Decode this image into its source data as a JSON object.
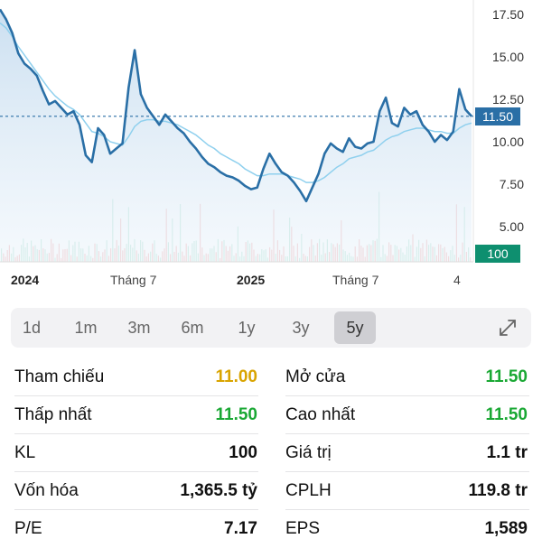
{
  "chart_data": {
    "type": "line",
    "y_ticks": [
      "17.50",
      "15.00",
      "12.50",
      "10.00",
      "7.50",
      "5.00"
    ],
    "y_tick_values": [
      17.5,
      15.0,
      12.5,
      10.0,
      7.5,
      5.0
    ],
    "x_ticks": [
      {
        "label": "2024",
        "bold": true
      },
      {
        "label": "Tháng 7",
        "bold": false
      },
      {
        "label": "2025",
        "bold": true
      },
      {
        "label": "Tháng 7",
        "bold": false
      },
      {
        "label": "4",
        "bold": false
      }
    ],
    "current_price": "11.50",
    "current_price_value": 11.5,
    "current_volume": "100",
    "price_series": [
      17.8,
      17.2,
      16.4,
      15.2,
      14.6,
      14.3,
      13.9,
      13.0,
      12.2,
      12.4,
      12.0,
      11.6,
      11.8,
      11.0,
      9.2,
      8.8,
      10.8,
      10.4,
      9.3,
      9.6,
      9.9,
      13.2,
      15.4,
      12.8,
      12.0,
      11.5,
      11.0,
      11.6,
      11.2,
      10.8,
      10.5,
      10.0,
      9.6,
      9.1,
      8.7,
      8.5,
      8.2,
      8.0,
      7.9,
      7.7,
      7.4,
      7.2,
      7.3,
      8.4,
      9.3,
      8.7,
      8.2,
      8.0,
      7.6,
      7.1,
      6.5,
      7.3,
      8.1,
      9.3,
      9.9,
      9.6,
      9.4,
      10.2,
      9.7,
      9.6,
      9.9,
      10.0,
      11.8,
      12.6,
      11.1,
      10.9,
      12.0,
      11.6,
      11.8,
      11.0,
      10.6,
      10.0,
      10.4,
      10.1,
      10.6,
      13.1,
      11.9,
      11.5
    ],
    "ma_series": [
      17.0,
      16.7,
      16.2,
      15.6,
      15.1,
      14.6,
      14.1,
      13.6,
      13.1,
      12.7,
      12.4,
      12.1,
      11.9,
      11.6,
      11.1,
      10.6,
      10.5,
      10.3,
      10.0,
      9.9,
      9.8,
      10.3,
      10.9,
      11.2,
      11.3,
      11.3,
      11.2,
      11.2,
      11.1,
      11.0,
      10.8,
      10.6,
      10.4,
      10.1,
      9.8,
      9.6,
      9.3,
      9.1,
      8.9,
      8.7,
      8.4,
      8.2,
      8.0,
      8.0,
      8.1,
      8.1,
      8.1,
      8.0,
      7.9,
      7.8,
      7.6,
      7.6,
      7.7,
      7.9,
      8.2,
      8.5,
      8.7,
      9.0,
      9.1,
      9.2,
      9.4,
      9.5,
      9.8,
      10.1,
      10.3,
      10.4,
      10.6,
      10.7,
      10.8,
      10.8,
      10.7,
      10.6,
      10.6,
      10.5,
      10.5,
      10.8,
      11.0,
      11.1
    ]
  },
  "ranges": {
    "items": [
      "1d",
      "1m",
      "3m",
      "6m",
      "1y",
      "3y",
      "5y"
    ],
    "active": "5y"
  },
  "stats": [
    {
      "left_label": "Tham chiếu",
      "left_value": "11.00",
      "left_color": "#d9a400",
      "right_label": "Mở cửa",
      "right_value": "11.50",
      "right_color": "#1aa834"
    },
    {
      "left_label": "Thấp nhất",
      "left_value": "11.50",
      "left_color": "#1aa834",
      "right_label": "Cao nhất",
      "right_value": "11.50",
      "right_color": "#1aa834"
    },
    {
      "left_label": "KL",
      "left_value": "100",
      "left_color": "#111111",
      "right_label": "Giá trị",
      "right_value": "1.1 tr",
      "right_color": "#111111"
    },
    {
      "left_label": "Vốn hóa",
      "left_value": "1,365.5 tỷ",
      "left_color": "#111111",
      "right_label": "CPLH",
      "right_value": "119.8 tr",
      "right_color": "#111111"
    },
    {
      "left_label": "P/E",
      "left_value": "7.17",
      "left_color": "#111111",
      "right_label": "EPS",
      "right_value": "1,589",
      "right_color": "#111111"
    }
  ],
  "icons": {
    "expand": "expand-icon"
  }
}
